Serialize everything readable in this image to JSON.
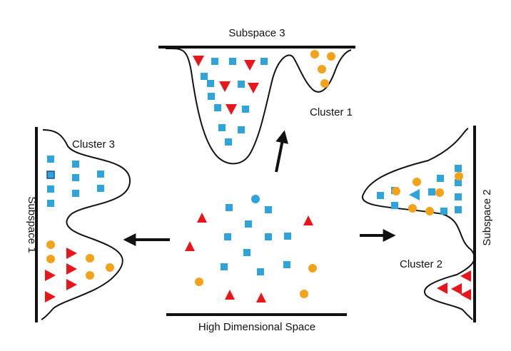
{
  "labels": {
    "subspace1": "Subspace 1",
    "subspace2": "Subspace 2",
    "subspace3": "Subspace 3",
    "cluster1": "Cluster 1",
    "cluster2": "Cluster 2",
    "cluster3": "Cluster 3",
    "high_dim": "High Dimensional Space"
  },
  "colors": {
    "square": "#2ea3dc",
    "circle": "#f5a21b",
    "triangle": "#e8161b",
    "line": "#111111"
  },
  "icons": {
    "square": "blue-square-icon",
    "circle": "orange-circle-icon",
    "triangle": "red-triangle-icon",
    "arrow": "arrow-icon"
  }
}
